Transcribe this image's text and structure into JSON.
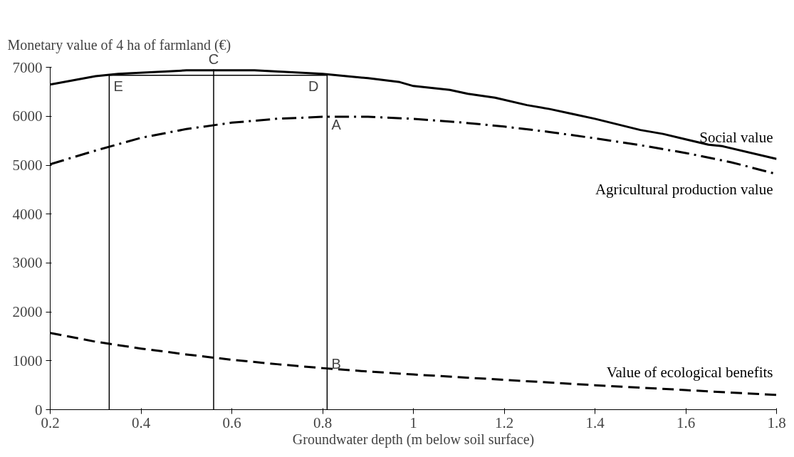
{
  "chart_data": {
    "type": "line",
    "ylabel": "Monetary value of 4 ha of farmland (€)",
    "xlabel": "Groundwater depth (m below soil surface)",
    "xlim": [
      0.2,
      1.8
    ],
    "xticks": [
      0.2,
      0.4,
      0.6,
      0.8,
      1,
      1.2,
      1.4,
      1.6,
      1.8
    ],
    "ylim": [
      0,
      7000
    ],
    "yticks": [
      0,
      1000,
      2000,
      3000,
      4000,
      5000,
      6000,
      7000
    ],
    "grid": false,
    "marker": "none",
    "series": [
      {
        "name": "Social value",
        "color": "#000000",
        "line_style": "solid",
        "x": [
          0.2,
          0.3,
          0.35,
          0.5,
          0.65,
          0.8,
          0.9,
          0.97,
          1.0,
          1.08,
          1.12,
          1.18,
          1.25,
          1.3,
          1.35,
          1.4,
          1.5,
          1.55,
          1.6,
          1.65,
          1.68,
          1.8
        ],
        "values": [
          6650,
          6820,
          6870,
          6940,
          6940,
          6870,
          6780,
          6700,
          6620,
          6540,
          6460,
          6380,
          6230,
          6150,
          6050,
          5950,
          5720,
          5640,
          5530,
          5420,
          5390,
          5130
        ]
      },
      {
        "name": "Agricultural production value",
        "color": "#000000",
        "line_style": "dashdot",
        "x": [
          0.2,
          0.3,
          0.4,
          0.5,
          0.6,
          0.7,
          0.8,
          0.9,
          1.0,
          1.1,
          1.2,
          1.3,
          1.4,
          1.5,
          1.6,
          1.7,
          1.8
        ],
        "values": [
          5020,
          5300,
          5560,
          5740,
          5870,
          5950,
          5990,
          5990,
          5950,
          5880,
          5790,
          5680,
          5550,
          5410,
          5250,
          5060,
          4820
        ]
      },
      {
        "name": "Value of ecological benefits",
        "color": "#000000",
        "line_style": "dashed",
        "x": [
          0.2,
          0.3,
          0.4,
          0.5,
          0.6,
          0.7,
          0.8,
          0.9,
          1.0,
          1.2,
          1.4,
          1.6,
          1.8
        ],
        "values": [
          1570,
          1390,
          1250,
          1130,
          1020,
          930,
          850,
          780,
          720,
          610,
          500,
          400,
          300
        ]
      },
      {
        "color": "#000000",
        "line_style": "solid",
        "x": [
          0.33,
          0.33
        ],
        "values": [
          0,
          6840
        ]
      },
      {
        "color": "#000000",
        "line_style": "solid",
        "x": [
          0.56,
          0.56
        ],
        "values": [
          0,
          6960
        ]
      },
      {
        "color": "#000000",
        "line_style": "solid",
        "x": [
          0.81,
          0.81
        ],
        "values": [
          0,
          6860
        ]
      },
      {
        "color": "#000000",
        "line_style": "solid",
        "x": [
          0.33,
          0.81
        ],
        "values": [
          6840,
          6840
        ]
      }
    ],
    "annotations": [
      "A",
      "B",
      "C",
      "D",
      "E"
    ]
  }
}
